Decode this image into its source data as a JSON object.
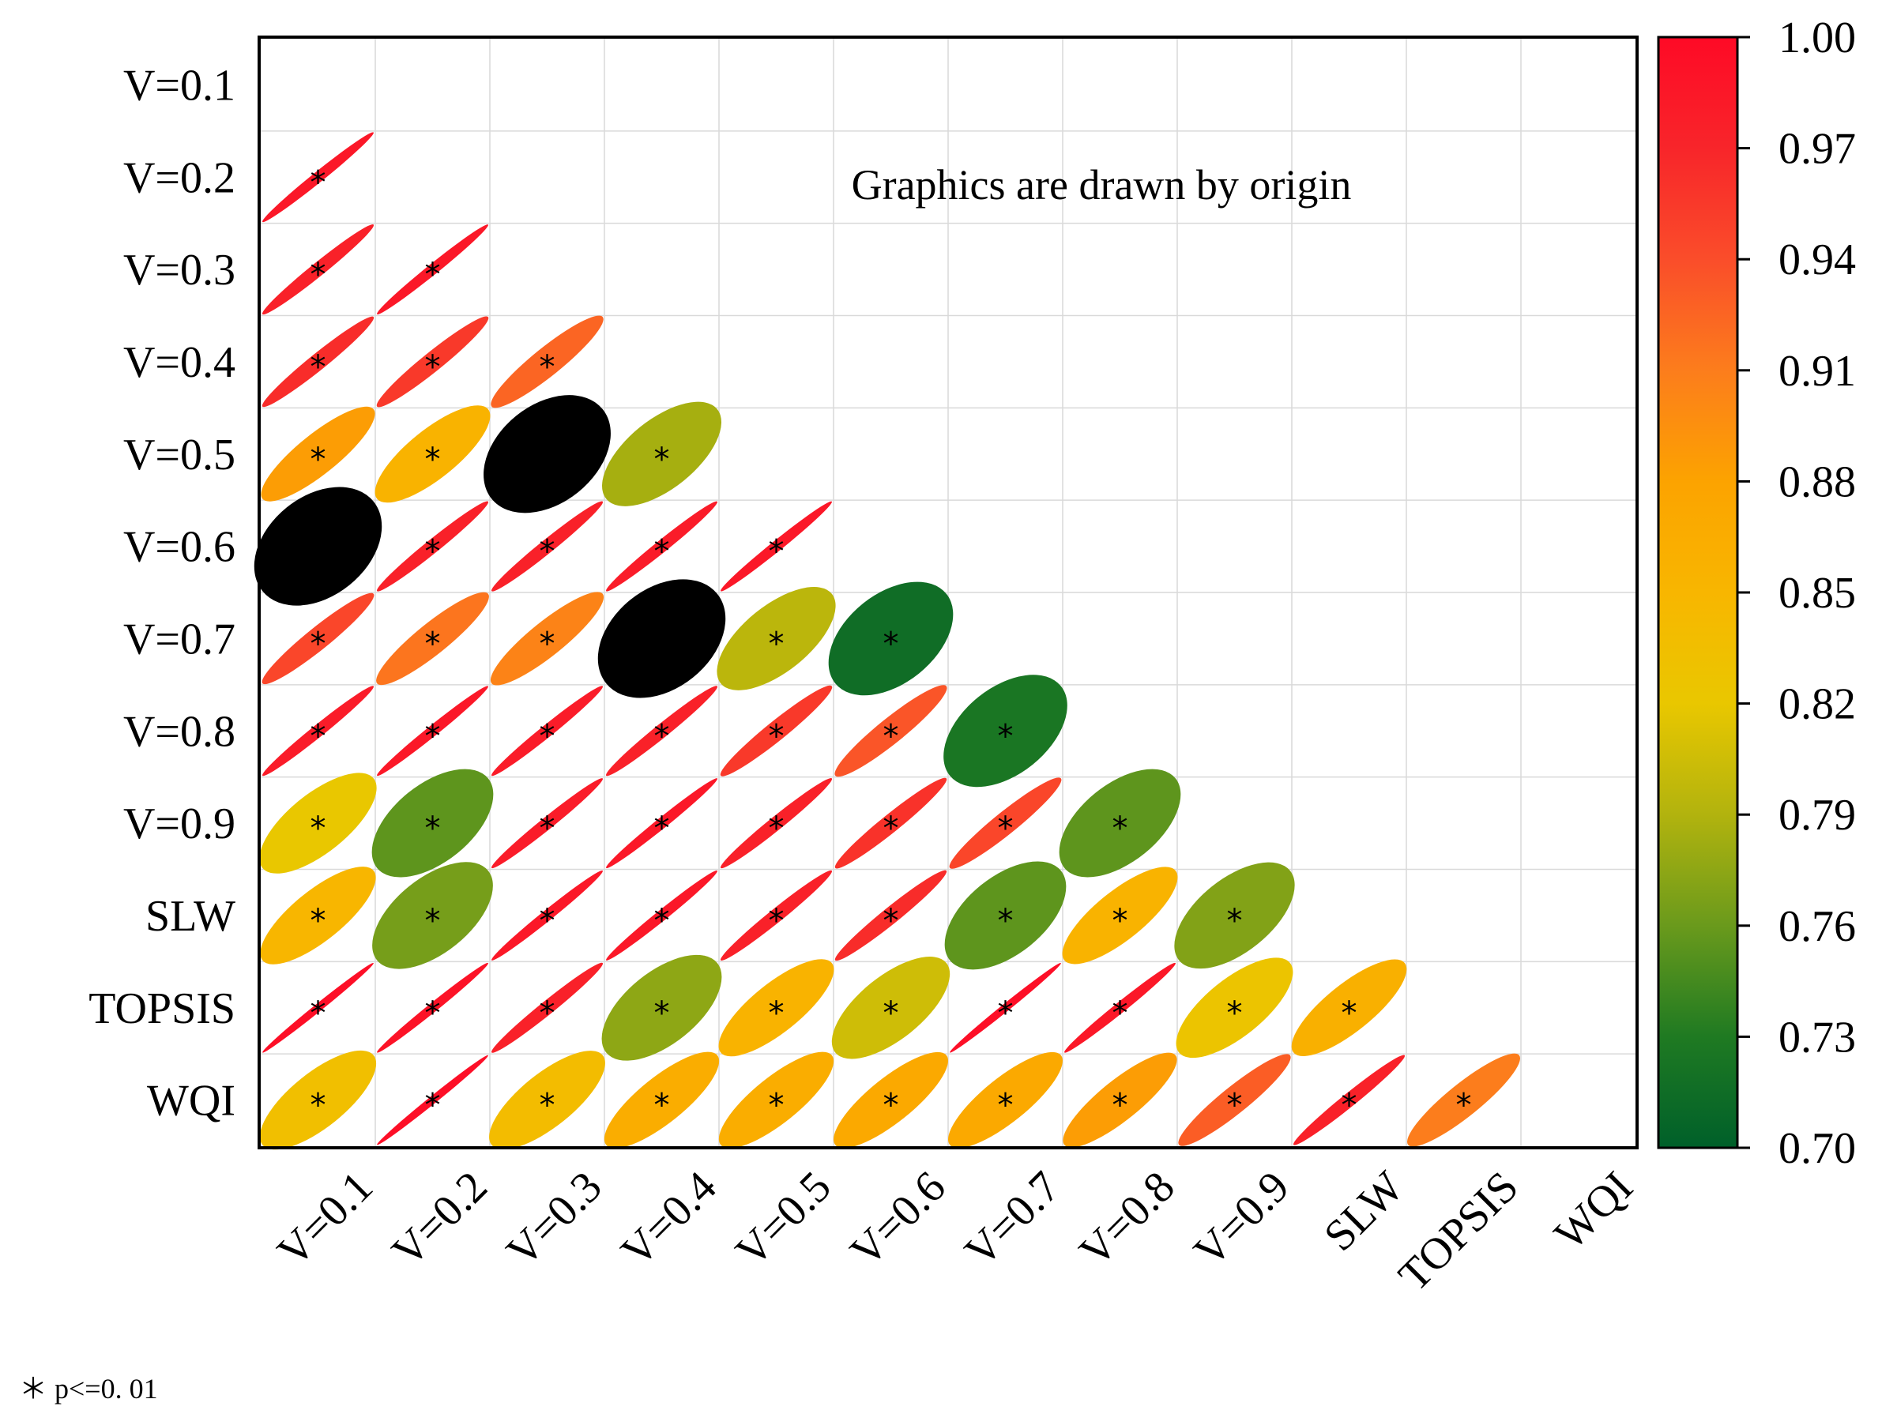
{
  "chart_data": {
    "type": "heatmap",
    "variables": [
      "V=0.1",
      "V=0.2",
      "V=0.3",
      "V=0.4",
      "V=0.5",
      "V=0.6",
      "V=0.7",
      "V=0.8",
      "V=0.9",
      "SLW",
      "TOPSIS",
      "WQI"
    ],
    "matrix": [
      [
        null,
        null,
        null,
        null,
        null,
        null,
        null,
        null,
        null,
        null,
        null,
        null
      ],
      [
        0.985,
        null,
        null,
        null,
        null,
        null,
        null,
        null,
        null,
        null,
        null,
        null
      ],
      [
        0.975,
        0.985,
        null,
        null,
        null,
        null,
        null,
        null,
        null,
        null,
        null,
        null
      ],
      [
        0.965,
        0.955,
        0.925,
        null,
        null,
        null,
        null,
        null,
        null,
        null,
        null,
        null
      ],
      [
        0.885,
        0.855,
        0.685,
        0.785,
        null,
        null,
        null,
        null,
        null,
        null,
        null,
        null
      ],
      [
        0.68,
        0.975,
        0.975,
        0.98,
        0.985,
        null,
        null,
        null,
        null,
        null,
        null,
        null
      ],
      [
        0.945,
        0.915,
        0.905,
        0.68,
        0.795,
        0.715,
        null,
        null,
        null,
        null,
        null,
        null
      ],
      [
        0.98,
        0.985,
        0.98,
        0.975,
        0.955,
        0.935,
        0.725,
        null,
        null,
        null,
        null,
        null
      ],
      [
        0.82,
        0.755,
        0.98,
        0.985,
        0.975,
        0.96,
        0.945,
        0.755,
        null,
        null,
        null,
        null
      ],
      [
        0.85,
        0.765,
        0.985,
        0.985,
        0.975,
        0.965,
        0.755,
        0.855,
        0.77,
        null,
        null,
        null
      ],
      [
        0.995,
        0.99,
        0.975,
        0.775,
        0.855,
        0.805,
        0.995,
        0.985,
        0.825,
        0.86,
        null,
        null
      ],
      [
        0.835,
        0.995,
        0.84,
        0.865,
        0.865,
        0.87,
        0.87,
        0.885,
        0.93,
        0.975,
        0.91,
        null
      ]
    ],
    "significance_marker": "*",
    "colorbar": {
      "min": 0.7,
      "max": 1.0,
      "ticks": [
        "1.00",
        "0.97",
        "0.94",
        "0.91",
        "0.88",
        "0.85",
        "0.82",
        "0.79",
        "0.76",
        "0.73",
        "0.70"
      ],
      "stops": [
        {
          "value": 0.7,
          "color": "#00602a"
        },
        {
          "value": 0.73,
          "color": "#1f7a22"
        },
        {
          "value": 0.76,
          "color": "#6a9a1c"
        },
        {
          "value": 0.79,
          "color": "#b2b30e"
        },
        {
          "value": 0.82,
          "color": "#e9c700"
        },
        {
          "value": 0.85,
          "color": "#f8b600"
        },
        {
          "value": 0.88,
          "color": "#fca300"
        },
        {
          "value": 0.91,
          "color": "#fc7d1c"
        },
        {
          "value": 0.94,
          "color": "#fa4d2a"
        },
        {
          "value": 0.97,
          "color": "#f8252a"
        },
        {
          "value": 1.0,
          "color": "#fe0a26"
        }
      ]
    },
    "outlier_color": "#000000",
    "annotation": "Graphics are drawn by origin",
    "footnote": "＊ p˂=0. 01"
  }
}
